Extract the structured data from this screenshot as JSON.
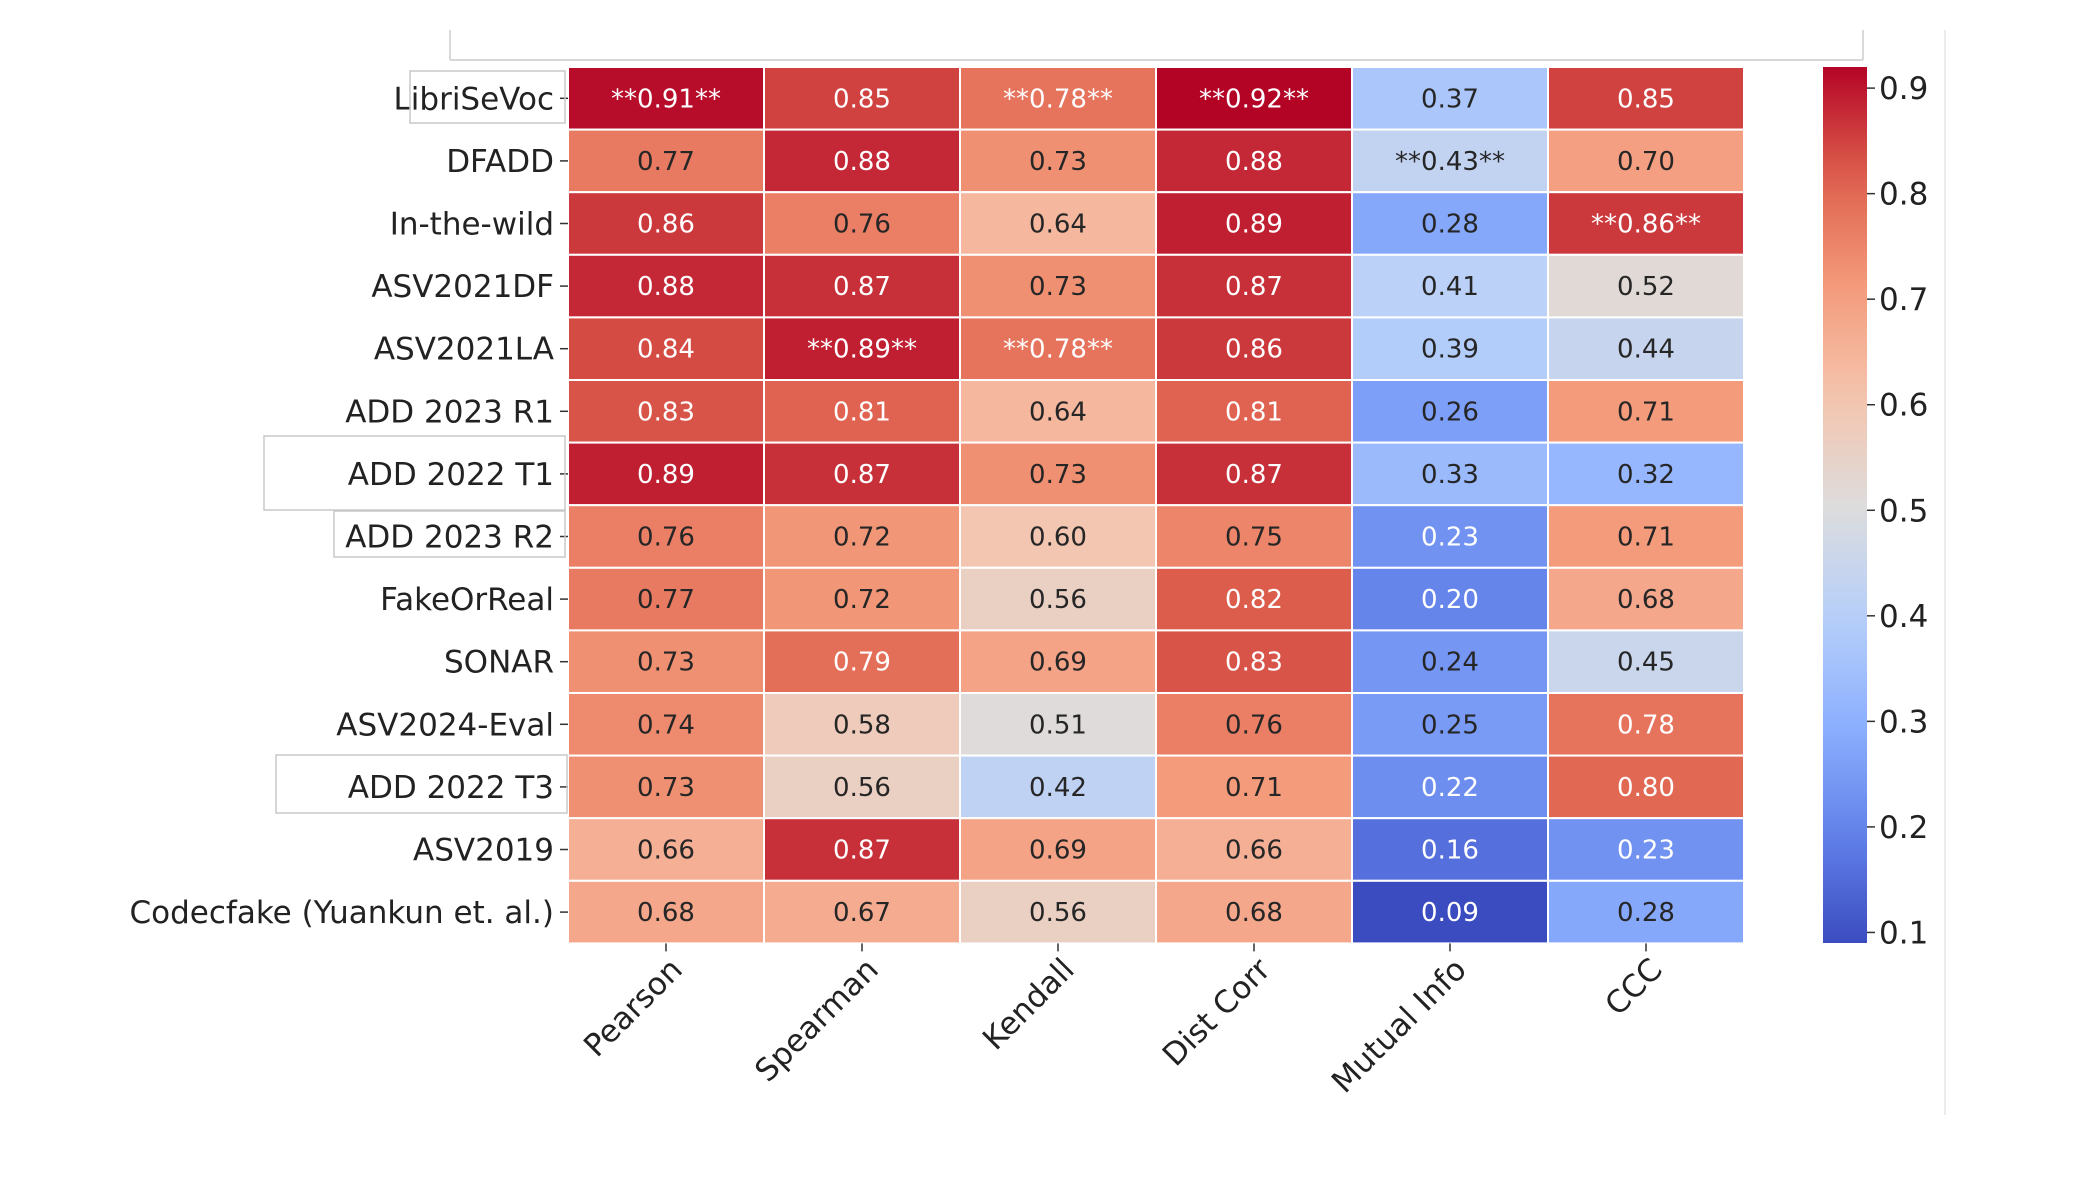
{
  "chart_data": {
    "type": "heatmap",
    "rows": [
      "LibriSeVoc",
      "DFADD",
      "In-the-wild",
      "ASV2021DF",
      "ASV2021LA",
      "ADD 2023 R1",
      "ADD 2022 T1",
      "ADD 2023 R2",
      "FakeOrReal",
      "SONAR",
      "ASV2024-Eval",
      "ADD 2022 T3",
      "ASV2019",
      "Codecfake (Yuankun et. al.)"
    ],
    "columns": [
      "Pearson",
      "Spearman",
      "Kendall",
      "Dist Corr",
      "Mutual Info",
      "CCC"
    ],
    "values": [
      [
        0.91,
        0.85,
        0.78,
        0.92,
        0.37,
        0.85
      ],
      [
        0.77,
        0.88,
        0.73,
        0.88,
        0.43,
        0.7
      ],
      [
        0.86,
        0.76,
        0.64,
        0.89,
        0.28,
        0.86
      ],
      [
        0.88,
        0.87,
        0.73,
        0.87,
        0.41,
        0.52
      ],
      [
        0.84,
        0.89,
        0.78,
        0.86,
        0.39,
        0.44
      ],
      [
        0.83,
        0.81,
        0.64,
        0.81,
        0.26,
        0.71
      ],
      [
        0.89,
        0.87,
        0.73,
        0.87,
        0.33,
        0.32
      ],
      [
        0.76,
        0.72,
        0.6,
        0.75,
        0.23,
        0.71
      ],
      [
        0.77,
        0.72,
        0.56,
        0.82,
        0.2,
        0.68
      ],
      [
        0.73,
        0.79,
        0.69,
        0.83,
        0.24,
        0.45
      ],
      [
        0.74,
        0.58,
        0.51,
        0.76,
        0.25,
        0.78
      ],
      [
        0.73,
        0.56,
        0.42,
        0.71,
        0.22,
        0.8
      ],
      [
        0.66,
        0.87,
        0.69,
        0.66,
        0.16,
        0.23
      ],
      [
        0.68,
        0.67,
        0.56,
        0.68,
        0.09,
        0.28
      ]
    ],
    "cell_labels": [
      [
        "**0.91**",
        "0.85",
        "**0.78**",
        "**0.92**",
        "0.37",
        "0.85"
      ],
      [
        "0.77",
        "0.88",
        "0.73",
        "0.88",
        "**0.43**",
        "0.70"
      ],
      [
        "0.86",
        "0.76",
        "0.64",
        "0.89",
        "0.28",
        "**0.86**"
      ],
      [
        "0.88",
        "0.87",
        "0.73",
        "0.87",
        "0.41",
        "0.52"
      ],
      [
        "0.84",
        "**0.89**",
        "**0.78**",
        "0.86",
        "0.39",
        "0.44"
      ],
      [
        "0.83",
        "0.81",
        "0.64",
        "0.81",
        "0.26",
        "0.71"
      ],
      [
        "0.89",
        "0.87",
        "0.73",
        "0.87",
        "0.33",
        "0.32"
      ],
      [
        "0.76",
        "0.72",
        "0.60",
        "0.75",
        "0.23",
        "0.71"
      ],
      [
        "0.77",
        "0.72",
        "0.56",
        "0.82",
        "0.20",
        "0.68"
      ],
      [
        "0.73",
        "0.79",
        "0.69",
        "0.83",
        "0.24",
        "0.45"
      ],
      [
        "0.74",
        "0.58",
        "0.51",
        "0.76",
        "0.25",
        "0.78"
      ],
      [
        "0.73",
        "0.56",
        "0.42",
        "0.71",
        "0.22",
        "0.80"
      ],
      [
        "0.66",
        "0.87",
        "0.69",
        "0.66",
        "0.16",
        "0.23"
      ],
      [
        "0.68",
        "0.67",
        "0.56",
        "0.68",
        "0.09",
        "0.28"
      ]
    ],
    "colormap": "coolwarm",
    "colorbar": {
      "vmin": 0.09,
      "vmax": 0.92,
      "ticks": [
        0.1,
        0.2,
        0.3,
        0.4,
        0.5,
        0.6,
        0.7,
        0.8,
        0.9
      ],
      "tick_labels": [
        "0.1",
        "0.2",
        "0.3",
        "0.4",
        "0.5",
        "0.6",
        "0.7",
        "0.8",
        "0.9"
      ]
    },
    "title": "",
    "xlabel": "",
    "ylabel": ""
  }
}
